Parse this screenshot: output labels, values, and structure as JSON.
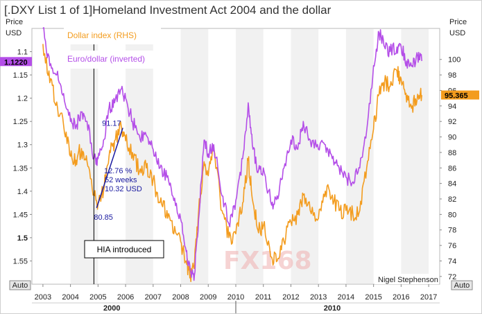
{
  "chart_data": {
    "type": "line",
    "title": "[.DXY List 1 of 1]Homeland Investment Act 2004 and the dollar",
    "left_axis": {
      "label_line1": "Price",
      "label_line2": "USD",
      "ticks": [
        "1.1",
        "1.15",
        "1.2",
        "1.25",
        "1.3",
        "1.35",
        "1.4",
        "1.45",
        "1.5",
        "1.55"
      ],
      "tick_values": [
        1.1,
        1.15,
        1.2,
        1.25,
        1.3,
        1.35,
        1.4,
        1.45,
        1.5,
        1.55
      ],
      "inverted": true,
      "range": [
        1.05,
        1.6
      ],
      "last_value_label": "1.1220",
      "last_value": 1.122,
      "bold_tick": "1.5"
    },
    "right_axis": {
      "label_line1": "Price",
      "label_line2": "USD",
      "ticks": [
        "100",
        "98",
        "96",
        "94",
        "92",
        "90",
        "88",
        "86",
        "84",
        "82",
        "80",
        "78",
        "76",
        "74",
        "72"
      ],
      "tick_values": [
        100,
        98,
        96,
        94,
        92,
        90,
        88,
        86,
        84,
        82,
        80,
        78,
        76,
        74,
        72
      ],
      "range": [
        71,
        104
      ],
      "last_value_label": "95.365",
      "last_value": 95.365
    },
    "x_axis": {
      "ticks": [
        "2003",
        "2004",
        "2005",
        "2006",
        "2007",
        "2008",
        "2009",
        "2010",
        "2011",
        "2012",
        "2013",
        "2014",
        "2015",
        "2016",
        "2017"
      ],
      "tick_values": [
        2003,
        2004,
        2005,
        2006,
        2007,
        2008,
        2009,
        2010,
        2011,
        2012,
        2013,
        2014,
        2015,
        2016,
        2017
      ],
      "range": [
        2002.6,
        2017.4
      ],
      "decade_labels": [
        "2000",
        "2010"
      ],
      "decade_values": [
        2000,
        2010
      ]
    },
    "auto_left": "Auto",
    "auto_right": "Auto",
    "series": [
      {
        "name": "Dollar index (RHS)",
        "axis": "right",
        "color": "#f39c1e",
        "x": [
          2003.0,
          2003.25,
          2003.5,
          2003.75,
          2004.0,
          2004.2,
          2004.4,
          2004.6,
          2004.85,
          2005.0,
          2005.2,
          2005.4,
          2005.6,
          2005.85,
          2006.0,
          2006.25,
          2006.5,
          2006.75,
          2007.0,
          2007.25,
          2007.5,
          2007.75,
          2008.0,
          2008.2,
          2008.35,
          2008.5,
          2008.65,
          2008.85,
          2009.0,
          2009.2,
          2009.5,
          2009.75,
          2010.0,
          2010.25,
          2010.45,
          2010.6,
          2010.8,
          2011.0,
          2011.3,
          2011.5,
          2011.75,
          2012.0,
          2012.25,
          2012.45,
          2012.7,
          2013.0,
          2013.25,
          2013.5,
          2013.75,
          2014.0,
          2014.25,
          2014.5,
          2014.75,
          2015.0,
          2015.2,
          2015.4,
          2015.6,
          2015.85,
          2016.0,
          2016.2,
          2016.4,
          2016.6,
          2016.75
        ],
        "y": [
          102.0,
          97.0,
          94.5,
          91.5,
          87.5,
          87.0,
          88.5,
          86.8,
          82.5,
          81.5,
          83.0,
          87.5,
          89.5,
          91.2,
          89.5,
          88.0,
          85.5,
          86.0,
          84.5,
          81.5,
          80.5,
          77.5,
          76.5,
          74.0,
          72.2,
          73.5,
          80.5,
          86.8,
          85.0,
          88.5,
          80.5,
          77.0,
          77.5,
          81.5,
          87.0,
          82.0,
          78.0,
          78.5,
          74.5,
          74.0,
          76.5,
          79.0,
          80.0,
          82.5,
          80.5,
          79.5,
          83.0,
          82.5,
          80.5,
          80.5,
          80.0,
          80.5,
          86.0,
          91.0,
          95.5,
          97.0,
          96.5,
          98.5,
          97.5,
          94.5,
          94.0,
          95.5,
          95.4
        ]
      },
      {
        "name": "Euro/dollar (inverted)",
        "axis": "left",
        "color": "#b44ee8",
        "x": [
          2003.0,
          2003.25,
          2003.5,
          2003.75,
          2004.0,
          2004.2,
          2004.4,
          2004.6,
          2004.85,
          2005.0,
          2005.2,
          2005.4,
          2005.6,
          2005.85,
          2006.0,
          2006.25,
          2006.5,
          2006.75,
          2007.0,
          2007.25,
          2007.5,
          2007.75,
          2008.0,
          2008.2,
          2008.35,
          2008.5,
          2008.65,
          2008.85,
          2009.0,
          2009.2,
          2009.5,
          2009.75,
          2010.0,
          2010.25,
          2010.45,
          2010.6,
          2010.8,
          2011.0,
          2011.3,
          2011.5,
          2011.75,
          2012.0,
          2012.25,
          2012.45,
          2012.7,
          2013.0,
          2013.25,
          2013.5,
          2013.75,
          2014.0,
          2014.25,
          2014.5,
          2014.75,
          2015.0,
          2015.2,
          2015.4,
          2015.6,
          2015.85,
          2016.0,
          2016.2,
          2016.4,
          2016.6,
          2016.75
        ],
        "y": [
          1.05,
          1.13,
          1.15,
          1.19,
          1.25,
          1.26,
          1.23,
          1.25,
          1.33,
          1.33,
          1.29,
          1.22,
          1.21,
          1.18,
          1.2,
          1.25,
          1.28,
          1.28,
          1.31,
          1.35,
          1.37,
          1.42,
          1.46,
          1.53,
          1.57,
          1.58,
          1.46,
          1.29,
          1.32,
          1.3,
          1.41,
          1.47,
          1.42,
          1.33,
          1.21,
          1.3,
          1.36,
          1.35,
          1.43,
          1.41,
          1.35,
          1.29,
          1.31,
          1.25,
          1.29,
          1.31,
          1.3,
          1.33,
          1.35,
          1.37,
          1.38,
          1.35,
          1.27,
          1.13,
          1.06,
          1.09,
          1.1,
          1.09,
          1.09,
          1.12,
          1.13,
          1.11,
          1.12
        ]
      }
    ],
    "vertical_marker": {
      "x": 2004.85,
      "label": "HIA introduced"
    },
    "annotations": {
      "low_value": "80.85",
      "low_x": 2004.95,
      "low_y": 80.85,
      "high_value": "91.17",
      "high_x": 2005.9,
      "high_y": 91.17,
      "pct": "12.76 %",
      "weeks": "52 weeks",
      "usd": "10.32 USD"
    },
    "credit": "Nigel Stephenson",
    "watermark": "FX168",
    "grid": "vertical bands",
    "legend_position": "top-left"
  }
}
